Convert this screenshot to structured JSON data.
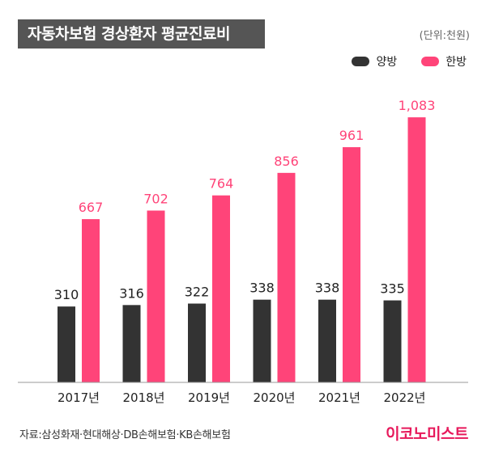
{
  "header": {
    "title": "자동차보험 경상환자 평균진료비",
    "unit": "(단위:천원)"
  },
  "footer": {
    "source": "자료:삼성화재·현대해상·DB손해보험·KB손해보험",
    "brand": "이코노미스트"
  },
  "chart_data": {
    "type": "bar",
    "categories": [
      "2017년",
      "2018년",
      "2019년",
      "2020년",
      "2021년",
      "2022년"
    ],
    "series": [
      {
        "name": "양방",
        "values": [
          310,
          316,
          322,
          338,
          338,
          335
        ],
        "labels": [
          "310",
          "316",
          "322",
          "338",
          "338",
          "335"
        ],
        "color": "#333333",
        "label_color": "#222222"
      },
      {
        "name": "한방",
        "values": [
          667,
          702,
          764,
          856,
          961,
          1083
        ],
        "labels": [
          "667",
          "702",
          "764",
          "856",
          "961",
          "1,083"
        ],
        "color": "#ff4479",
        "label_color": "#ff4479"
      }
    ],
    "ylim": [
      0,
      1150
    ],
    "grid": false,
    "legend_position": "top-right"
  }
}
